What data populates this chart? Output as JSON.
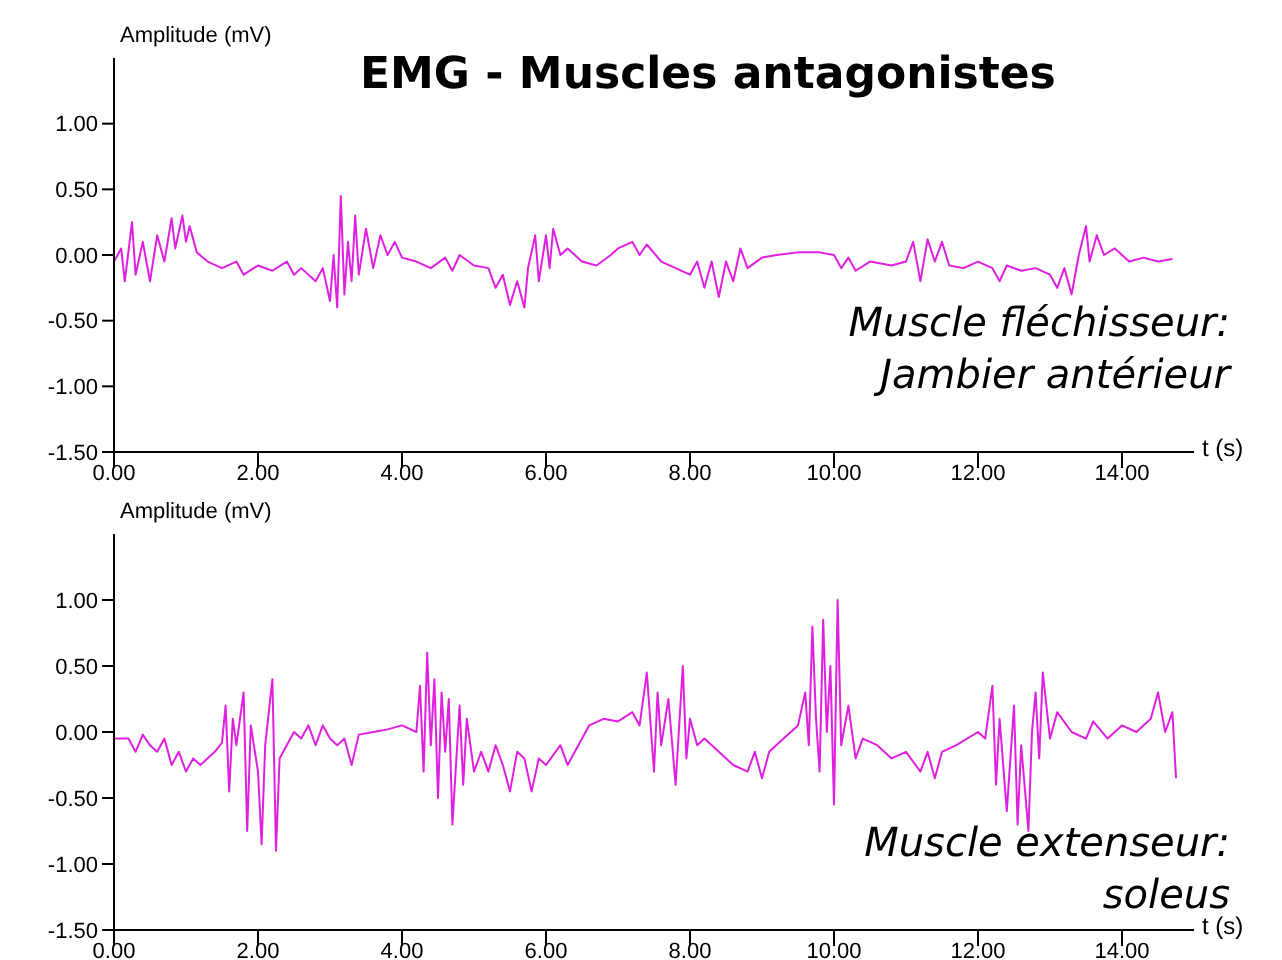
{
  "chart_data": [
    {
      "type": "line",
      "title": "EMG - Muscles antagonistes",
      "xlabel": "t (s)",
      "ylabel": "Amplitude (mV)",
      "annotations": [
        "Muscle fléchisseur:\nJambier antérieur"
      ],
      "xlim": [
        0,
        15
      ],
      "xticks": [
        {
          "value": 0,
          "label": "0.00"
        },
        {
          "value": 2,
          "label": "2.00"
        },
        {
          "value": 4,
          "label": "4.00"
        },
        {
          "value": 6,
          "label": "6.00"
        },
        {
          "value": 8,
          "label": "8.00"
        },
        {
          "value": 10,
          "label": "10.00"
        },
        {
          "value": 12,
          "label": "12.00"
        },
        {
          "value": 14,
          "label": "14.00"
        }
      ],
      "ylim": [
        -1.5,
        1.5
      ],
      "yticks": [
        {
          "value": -1.5,
          "label": "-1.50"
        },
        {
          "value": -1,
          "label": "-1.00"
        },
        {
          "value": -0.5,
          "label": "-0.50"
        },
        {
          "value": 0,
          "label": "0.00"
        },
        {
          "value": 0.5,
          "label": "0.50"
        },
        {
          "value": 1,
          "label": "1.00"
        }
      ],
      "grid": false,
      "legend": false,
      "marker": "none",
      "line_style": "solid",
      "x": [
        0,
        0.1,
        0.15,
        0.25,
        0.3,
        0.4,
        0.5,
        0.6,
        0.7,
        0.8,
        0.85,
        0.95,
        1.0,
        1.05,
        1.15,
        1.3,
        1.5,
        1.7,
        1.8,
        2.0,
        2.2,
        2.4,
        2.5,
        2.6,
        2.8,
        2.9,
        3.0,
        3.05,
        3.1,
        3.15,
        3.2,
        3.25,
        3.3,
        3.35,
        3.4,
        3.5,
        3.6,
        3.7,
        3.8,
        3.9,
        4.0,
        4.2,
        4.4,
        4.6,
        4.7,
        4.8,
        5.0,
        5.2,
        5.3,
        5.4,
        5.5,
        5.6,
        5.7,
        5.75,
        5.85,
        5.9,
        6.0,
        6.05,
        6.1,
        6.2,
        6.3,
        6.5,
        6.7,
        6.9,
        7.0,
        7.2,
        7.3,
        7.4,
        7.6,
        7.8,
        8.0,
        8.1,
        8.2,
        8.3,
        8.4,
        8.5,
        8.6,
        8.7,
        8.8,
        9.0,
        9.2,
        9.5,
        9.8,
        10.0,
        10.1,
        10.2,
        10.3,
        10.5,
        10.8,
        11.0,
        11.1,
        11.2,
        11.3,
        11.4,
        11.5,
        11.6,
        11.8,
        12.0,
        12.2,
        12.3,
        12.4,
        12.6,
        12.8,
        13.0,
        13.1,
        13.2,
        13.3,
        13.4,
        13.5,
        13.55,
        13.65,
        13.75,
        13.9,
        14.1,
        14.3,
        14.5,
        14.7
      ],
      "series": [
        {
          "color": "#e020e0",
          "values": [
            -0.05,
            0.05,
            -0.2,
            0.25,
            -0.15,
            0.1,
            -0.2,
            0.15,
            -0.05,
            0.28,
            0.05,
            0.3,
            0.1,
            0.22,
            0.02,
            -0.05,
            -0.1,
            -0.05,
            -0.15,
            -0.08,
            -0.12,
            -0.05,
            -0.15,
            -0.1,
            -0.2,
            -0.1,
            -0.35,
            0.0,
            -0.4,
            0.45,
            -0.3,
            0.1,
            -0.2,
            0.3,
            -0.15,
            0.2,
            -0.1,
            0.15,
            0.0,
            0.1,
            -0.02,
            -0.05,
            -0.1,
            -0.02,
            -0.12,
            0.0,
            -0.08,
            -0.1,
            -0.25,
            -0.15,
            -0.38,
            -0.2,
            -0.4,
            -0.1,
            0.15,
            -0.2,
            0.15,
            -0.1,
            0.2,
            0.0,
            0.05,
            -0.05,
            -0.08,
            0.0,
            0.05,
            0.1,
            0.0,
            0.08,
            -0.05,
            -0.1,
            -0.15,
            -0.05,
            -0.25,
            -0.05,
            -0.32,
            -0.05,
            -0.2,
            0.05,
            -0.1,
            -0.02,
            0.0,
            0.02,
            0.02,
            0.0,
            -0.1,
            -0.02,
            -0.12,
            -0.05,
            -0.08,
            -0.05,
            0.1,
            -0.2,
            0.12,
            -0.05,
            0.1,
            -0.08,
            -0.1,
            -0.05,
            -0.1,
            -0.2,
            -0.08,
            -0.12,
            -0.1,
            -0.15,
            -0.25,
            -0.1,
            -0.3,
            0.0,
            0.22,
            -0.05,
            0.15,
            0.0,
            0.05,
            -0.05,
            -0.02,
            -0.05,
            -0.03
          ]
        }
      ]
    },
    {
      "type": "line",
      "xlabel": "t (s)",
      "ylabel": "Amplitude (mV)",
      "annotations": [
        "Muscle extenseur:\nsoleus"
      ],
      "xlim": [
        0,
        15
      ],
      "xticks": [
        {
          "value": 0,
          "label": "0.00"
        },
        {
          "value": 2,
          "label": "2.00"
        },
        {
          "value": 4,
          "label": "4.00"
        },
        {
          "value": 6,
          "label": "6.00"
        },
        {
          "value": 8,
          "label": "8.00"
        },
        {
          "value": 10,
          "label": "10.00"
        },
        {
          "value": 12,
          "label": "12.00"
        },
        {
          "value": 14,
          "label": "14.00"
        }
      ],
      "ylim": [
        -1.5,
        1.5
      ],
      "yticks": [
        {
          "value": -1.5,
          "label": "-1.50"
        },
        {
          "value": -1,
          "label": "-1.00"
        },
        {
          "value": -0.5,
          "label": "-0.50"
        },
        {
          "value": 0,
          "label": "0.00"
        },
        {
          "value": 0.5,
          "label": "0.50"
        },
        {
          "value": 1,
          "label": "1.00"
        }
      ],
      "grid": false,
      "legend": false,
      "marker": "none",
      "line_style": "solid",
      "x": [
        0,
        0.2,
        0.3,
        0.4,
        0.5,
        0.6,
        0.7,
        0.8,
        0.9,
        1.0,
        1.1,
        1.2,
        1.4,
        1.5,
        1.55,
        1.6,
        1.65,
        1.7,
        1.8,
        1.85,
        1.9,
        2.0,
        2.05,
        2.1,
        2.2,
        2.25,
        2.3,
        2.4,
        2.5,
        2.6,
        2.7,
        2.8,
        2.9,
        3.0,
        3.1,
        3.2,
        3.3,
        3.4,
        3.6,
        3.8,
        4.0,
        4.2,
        4.25,
        4.3,
        4.35,
        4.4,
        4.45,
        4.5,
        4.55,
        4.6,
        4.65,
        4.7,
        4.8,
        4.85,
        4.9,
        5.0,
        5.1,
        5.2,
        5.3,
        5.4,
        5.5,
        5.6,
        5.7,
        5.8,
        5.9,
        6.0,
        6.2,
        6.3,
        6.4,
        6.6,
        6.8,
        7.0,
        7.2,
        7.3,
        7.4,
        7.5,
        7.55,
        7.6,
        7.7,
        7.8,
        7.9,
        7.95,
        8.0,
        8.1,
        8.2,
        8.4,
        8.6,
        8.8,
        8.9,
        9.0,
        9.1,
        9.3,
        9.5,
        9.6,
        9.65,
        9.7,
        9.75,
        9.8,
        9.85,
        9.9,
        9.95,
        10.0,
        10.05,
        10.1,
        10.2,
        10.3,
        10.4,
        10.6,
        10.8,
        11.0,
        11.2,
        11.3,
        11.4,
        11.5,
        11.7,
        12.0,
        12.1,
        12.2,
        12.25,
        12.3,
        12.4,
        12.5,
        12.55,
        12.6,
        12.7,
        12.75,
        12.8,
        12.85,
        12.9,
        13.0,
        13.1,
        13.3,
        13.5,
        13.6,
        13.8,
        14.0,
        14.2,
        14.4,
        14.5,
        14.6,
        14.7,
        14.75
      ],
      "series": [
        {
          "color": "#e020e0",
          "values": [
            -0.05,
            -0.05,
            -0.15,
            -0.02,
            -0.1,
            -0.15,
            -0.05,
            -0.25,
            -0.15,
            -0.3,
            -0.2,
            -0.25,
            -0.15,
            -0.08,
            0.2,
            -0.45,
            0.1,
            -0.1,
            0.3,
            -0.75,
            0.05,
            -0.3,
            -0.85,
            -0.1,
            0.4,
            -0.9,
            -0.2,
            -0.1,
            0.0,
            -0.05,
            0.05,
            -0.1,
            0.05,
            -0.05,
            -0.1,
            -0.05,
            -0.25,
            -0.02,
            0.0,
            0.02,
            0.05,
            0.0,
            0.35,
            -0.3,
            0.6,
            -0.1,
            0.4,
            -0.5,
            0.3,
            -0.15,
            0.25,
            -0.7,
            0.2,
            -0.4,
            0.1,
            -0.3,
            -0.15,
            -0.3,
            -0.1,
            -0.25,
            -0.45,
            -0.15,
            -0.2,
            -0.45,
            -0.2,
            -0.25,
            -0.1,
            -0.25,
            -0.15,
            0.05,
            0.1,
            0.08,
            0.15,
            0.05,
            0.45,
            -0.3,
            0.3,
            -0.1,
            0.25,
            -0.4,
            0.5,
            -0.2,
            0.1,
            -0.1,
            -0.05,
            -0.15,
            -0.25,
            -0.3,
            -0.15,
            -0.35,
            -0.15,
            -0.05,
            0.05,
            0.3,
            -0.1,
            0.8,
            0.1,
            -0.3,
            0.85,
            0.0,
            0.5,
            -0.55,
            1.0,
            -0.1,
            0.2,
            -0.2,
            -0.05,
            -0.1,
            -0.2,
            -0.15,
            -0.3,
            -0.15,
            -0.35,
            -0.15,
            -0.1,
            0.0,
            -0.05,
            0.35,
            -0.4,
            0.1,
            -0.6,
            0.2,
            -0.7,
            -0.1,
            -0.75,
            0.0,
            0.3,
            -0.2,
            0.45,
            -0.05,
            0.15,
            0.0,
            -0.05,
            0.08,
            -0.05,
            0.05,
            0.0,
            0.1,
            0.3,
            0.0,
            0.15,
            -0.35
          ]
        }
      ]
    }
  ]
}
